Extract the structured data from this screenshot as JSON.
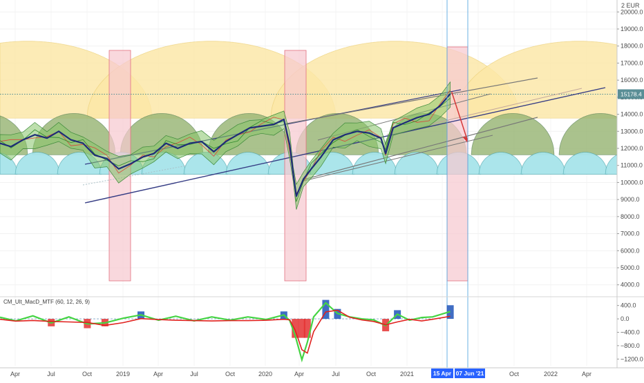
{
  "chart_data": {
    "type": "line",
    "currency_label": "2 EUR",
    "last_price": "15178.4",
    "y_ticks": [
      "20000.0",
      "19000.0",
      "18000.0",
      "17000.0",
      "16000.0",
      "15000.0",
      "14000.0",
      "13000.0",
      "12000.0",
      "11000.0",
      "10000.0",
      "9000.0",
      "8000.0",
      "7000.0",
      "6000.0",
      "5000.0",
      "4000.0"
    ],
    "y_range": [
      3300,
      20700
    ],
    "x_ticks": [
      "Apr",
      "Jul",
      "Oct",
      "2019",
      "Apr",
      "Jul",
      "Oct",
      "2020",
      "Apr",
      "Jul",
      "Oct",
      "2021",
      "Apr",
      "Jul",
      "Oct",
      "2022",
      "Apr"
    ],
    "x_range": [
      "2018-02-20",
      "2022-06-15"
    ],
    "vline_labels": [
      "15 Apr",
      "07 Jun '21"
    ],
    "price_series": {
      "x": [
        "2018-02-20",
        "2018-03-20",
        "2018-04-20",
        "2018-05-20",
        "2018-06-20",
        "2018-07-20",
        "2018-08-20",
        "2018-09-20",
        "2018-10-20",
        "2018-11-20",
        "2018-12-20",
        "2019-01-20",
        "2019-02-20",
        "2019-03-20",
        "2019-04-20",
        "2019-05-20",
        "2019-06-20",
        "2019-07-20",
        "2019-08-20",
        "2019-09-20",
        "2019-10-20",
        "2019-11-20",
        "2019-12-20",
        "2020-01-20",
        "2020-02-15",
        "2020-03-01",
        "2020-03-10",
        "2020-03-18",
        "2020-04-05",
        "2020-04-25",
        "2020-05-20",
        "2020-06-20",
        "2020-07-20",
        "2020-08-20",
        "2020-09-20",
        "2020-10-20",
        "2020-11-01",
        "2020-11-20",
        "2020-12-20",
        "2021-01-20",
        "2021-02-20",
        "2021-03-20",
        "2021-04-15"
      ],
      "y": [
        12300,
        12100,
        12500,
        12800,
        12600,
        13000,
        12500,
        12300,
        11600,
        11400,
        10800,
        11100,
        11500,
        11700,
        12300,
        12000,
        12300,
        12400,
        11800,
        12400,
        12800,
        13200,
        13300,
        13400,
        13700,
        12200,
        10500,
        9200,
        10200,
        10800,
        11500,
        12500,
        12800,
        13000,
        12900,
        12600,
        11700,
        13200,
        13500,
        13800,
        14000,
        14500,
        15200
      ]
    },
    "indicator": {
      "title": "CM_Ult_MacD_MTF (60, 12, 26, 9)",
      "y_ticks": [
        "400.0",
        "0.0",
        "−400.0",
        "−800.0",
        "−1200.0"
      ],
      "y_range": [
        -1400,
        620
      ],
      "x": [
        "2018-02-20",
        "2018-04-01",
        "2018-05-15",
        "2018-07-01",
        "2018-08-15",
        "2018-10-01",
        "2018-11-15",
        "2019-01-01",
        "2019-02-15",
        "2019-04-01",
        "2019-05-15",
        "2019-07-01",
        "2019-08-15",
        "2019-10-01",
        "2019-11-15",
        "2020-01-01",
        "2020-02-15",
        "2020-03-01",
        "2020-03-15",
        "2020-04-01",
        "2020-04-15",
        "2020-05-01",
        "2020-06-01",
        "2020-07-01",
        "2020-08-01",
        "2020-09-01",
        "2020-10-01",
        "2020-11-01",
        "2020-12-01",
        "2021-01-01",
        "2021-02-01",
        "2021-03-01",
        "2021-04-15"
      ],
      "macd": [
        50,
        -60,
        90,
        -120,
        60,
        -150,
        -120,
        20,
        120,
        -40,
        80,
        -60,
        60,
        -40,
        60,
        -20,
        120,
        -50,
        -500,
        -1220,
        -700,
        60,
        480,
        160,
        60,
        0,
        -30,
        -200,
        140,
        -40,
        40,
        60,
        220
      ]
    }
  },
  "colors": {
    "price": "#1e2c78",
    "yellow_arc": "#fbe7a6",
    "green_arc": "#97b574",
    "cyan_arc": "#a6e4ea",
    "pink_band": "#f7c9d0",
    "pink_border": "#e2707f",
    "channel_blue": "#353c84",
    "channel_grey": "#777777",
    "projection": "#d63737",
    "badge": "#2962ff",
    "price_label": "#5a8e96",
    "macd_green": "#45d443",
    "macd_red": "#e0211e",
    "hist_blue": "#1f54b8",
    "hist_red": "#e43131"
  }
}
